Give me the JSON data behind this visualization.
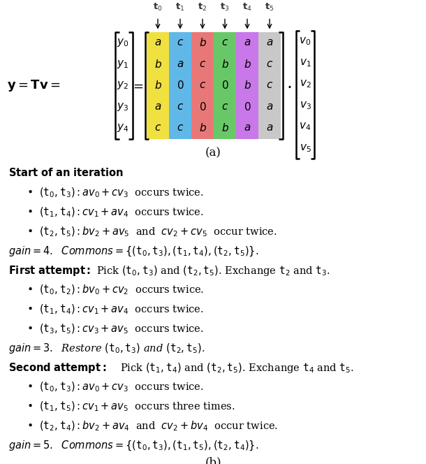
{
  "fig_width": 6.1,
  "fig_height": 6.64,
  "dpi": 100,
  "bg_color": "#ffffff",
  "matrix_data": [
    [
      "a",
      "c",
      "b",
      "c",
      "a",
      "a"
    ],
    [
      "b",
      "a",
      "c",
      "b",
      "b",
      "c"
    ],
    [
      "b",
      "0",
      "c",
      "0",
      "b",
      "c"
    ],
    [
      "a",
      "c",
      "0",
      "c",
      "0",
      "a"
    ],
    [
      "c",
      "c",
      "b",
      "b",
      "a",
      "a"
    ]
  ],
  "col_colors": [
    "#f0e040",
    "#60b8e8",
    "#e87878",
    "#68c868",
    "#c878e8",
    "#c8c8c8"
  ],
  "col_labels": [
    "$\\mathbf{t}_0$",
    "$\\mathbf{t}_1$",
    "$\\mathbf{t}_2$",
    "$\\mathbf{t}_3$",
    "$\\mathbf{t}_4$",
    "$\\mathbf{t}_5$"
  ],
  "row_y_labels": [
    "$y_0$",
    "$y_1$",
    "$y_2$",
    "$y_3$",
    "$y_4$"
  ],
  "row_v_labels": [
    "$v_0$",
    "$v_1$",
    "$v_2$",
    "$v_3$",
    "$v_4$",
    "$v_5$"
  ],
  "label_a": "(a)",
  "label_b": "(b)"
}
